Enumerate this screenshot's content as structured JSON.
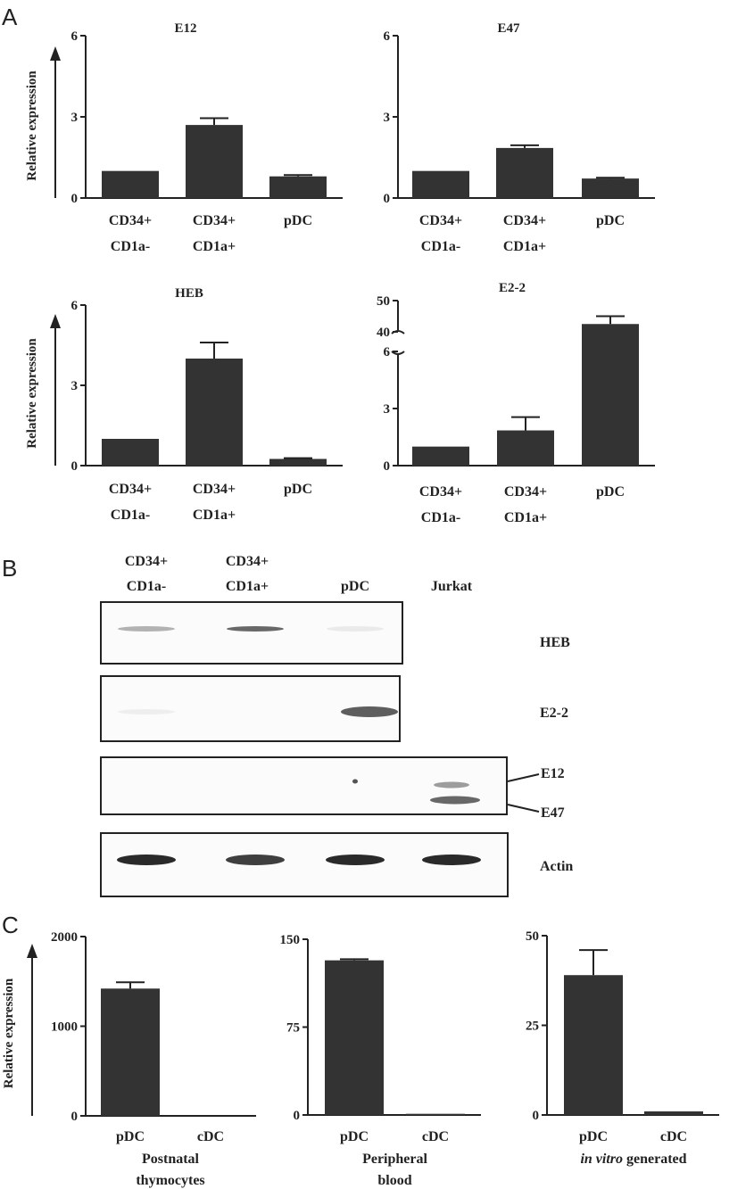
{
  "panels": {
    "a": "A",
    "b": "B",
    "c": "C"
  },
  "colors": {
    "bar": "#333333",
    "axis": "#222222",
    "band": "#2a2a2a"
  },
  "chart_data": [
    {
      "id": "E12",
      "type": "bar",
      "title": "E12",
      "ylabel": "Relative expression",
      "categories": [
        "CD34+|CD1a-",
        "CD34+|CD1a+",
        "pDC"
      ],
      "values": [
        1.0,
        2.7,
        0.8
      ],
      "errors": [
        0,
        0.25,
        0.05
      ],
      "ylim": [
        0,
        6
      ],
      "yticks": [
        0,
        3,
        6
      ]
    },
    {
      "id": "E47",
      "type": "bar",
      "title": "E47",
      "ylabel": "",
      "categories": [
        "CD34+|CD1a-",
        "CD34+|CD1a+",
        "pDC"
      ],
      "values": [
        1.0,
        1.85,
        0.72
      ],
      "errors": [
        0,
        0.1,
        0.03
      ],
      "ylim": [
        0,
        6
      ],
      "yticks": [
        0,
        3,
        6
      ]
    },
    {
      "id": "HEB",
      "type": "bar",
      "title": "HEB",
      "ylabel": "Relative expression",
      "categories": [
        "CD34+|CD1a-",
        "CD34+|CD1a+",
        "pDC"
      ],
      "values": [
        1.0,
        4.0,
        0.25
      ],
      "errors": [
        0,
        0.6,
        0.03
      ],
      "ylim": [
        0,
        6
      ],
      "yticks": [
        0,
        3,
        6
      ]
    },
    {
      "id": "E2-2",
      "type": "bar",
      "title": "E2-2",
      "ylabel": "",
      "categories": [
        "CD34+|CD1a-",
        "CD34+|CD1a+",
        "pDC"
      ],
      "values": [
        1.0,
        1.85,
        42.5
      ],
      "errors": [
        0,
        0.7,
        2.5
      ],
      "ylim": [
        0,
        50
      ],
      "axis_break": [
        6,
        40
      ],
      "yticks": [
        0,
        3,
        6,
        40,
        50
      ]
    },
    {
      "id": "thymocytes",
      "type": "bar",
      "title": "",
      "ylabel": "Relative expression",
      "xlabel": "Postnatal|thymocytes",
      "categories": [
        "pDC",
        "cDC"
      ],
      "values": [
        1420,
        0
      ],
      "errors": [
        70,
        0
      ],
      "ylim": [
        0,
        2000
      ],
      "yticks": [
        0,
        1000,
        2000
      ]
    },
    {
      "id": "blood",
      "type": "bar",
      "title": "",
      "ylabel": "",
      "xlabel": "Peripheral|blood",
      "categories": [
        "pDC",
        "cDC"
      ],
      "values": [
        132,
        1
      ],
      "errors": [
        1,
        0
      ],
      "ylim": [
        0,
        150
      ],
      "yticks": [
        0,
        75,
        150
      ]
    },
    {
      "id": "invitro",
      "type": "bar",
      "title": "",
      "ylabel": "",
      "xlabel_html": "in vitro| generated",
      "categories": [
        "pDC",
        "cDC"
      ],
      "values": [
        39,
        1
      ],
      "errors": [
        7,
        0
      ],
      "ylim": [
        0,
        50
      ],
      "yticks": [
        0,
        25,
        50
      ]
    }
  ],
  "western_blot": {
    "lane_labels": [
      "CD34+|CD1a-",
      "CD34+|CD1a+",
      "pDC",
      "Jurkat"
    ],
    "rows": [
      {
        "label": "HEB",
        "lanes": 3,
        "bands": [
          0.35,
          0.7,
          0.08,
          0
        ]
      },
      {
        "label": "E2-2",
        "lanes": 3,
        "bands": [
          0.06,
          0,
          0.75,
          0
        ]
      },
      {
        "label": "E12|E47",
        "lanes": 4,
        "bands": [
          0,
          0,
          0.4,
          0.6
        ]
      },
      {
        "label": "Actin",
        "lanes": 4,
        "bands": [
          1,
          0.9,
          1,
          1
        ]
      }
    ]
  }
}
